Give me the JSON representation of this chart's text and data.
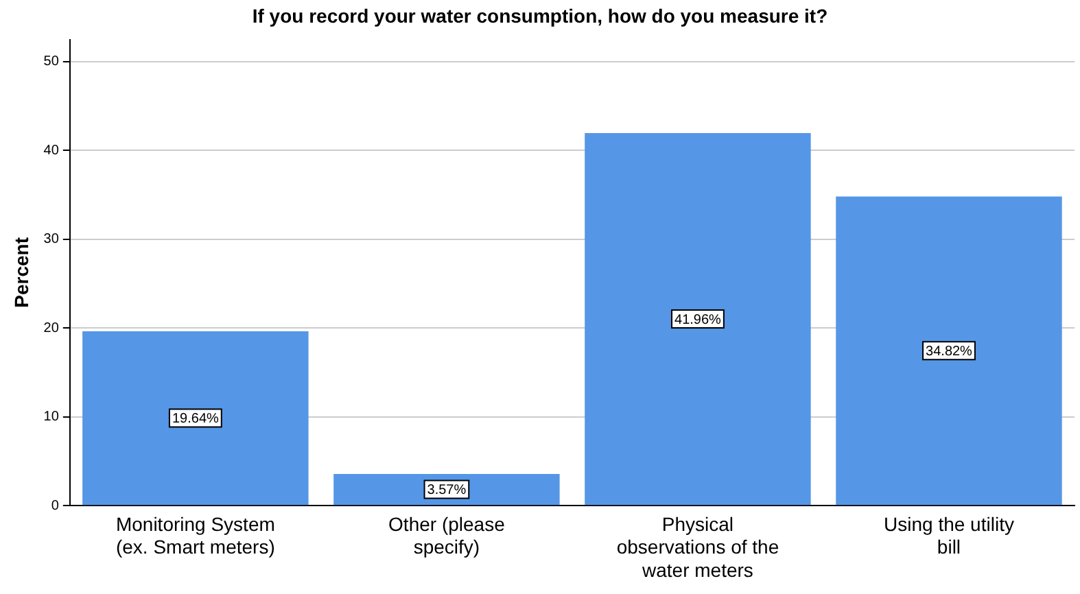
{
  "chart_data": {
    "type": "bar",
    "title": "If you record your water consumption, how do you measure it?",
    "ylabel": "Percent",
    "categories": [
      "Monitoring System (ex. Smart meters)",
      "Other (please specify)",
      "Physical observations of the water meters",
      "Using the utility bill"
    ],
    "values": [
      19.64,
      3.57,
      41.96,
      34.82
    ],
    "color": "#5596e6",
    "value_labels": [
      "19.64%",
      "3.57%",
      "41.96%",
      "34.82%"
    ],
    "ylim": [
      0,
      52.5
    ],
    "yticks": [
      0,
      10,
      20,
      30,
      40,
      50
    ],
    "grid": "y",
    "legend": false
  }
}
